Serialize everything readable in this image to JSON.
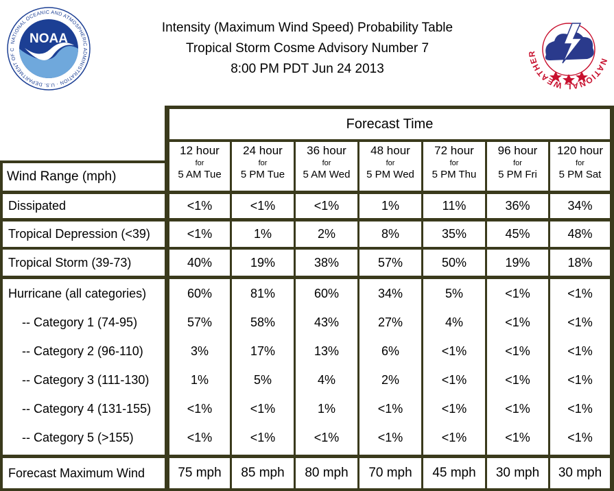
{
  "header": {
    "title_line1": "Intensity (Maximum Wind Speed) Probability Table",
    "title_line2": "Tropical Storm Cosme Advisory Number 7",
    "title_line3": "8:00 PM PDT Jun 24 2013",
    "left_logo": "noaa-logo",
    "left_logo_text": "NOAA",
    "left_logo_ring_text": "NATIONAL OCEANIC AND ATMOSPHERIC ADMINISTRATION · U.S. DEPARTMENT OF COMMERCE",
    "right_logo": "national-weather-service-logo",
    "right_logo_ring_text": "NATIONAL WEATHER SERVICE"
  },
  "table": {
    "forecast_time_label": "Forecast Time",
    "wind_range_label": "Wind Range (mph)",
    "columns": [
      {
        "hour": "12 hour",
        "for": "for",
        "when": "5 AM Tue"
      },
      {
        "hour": "24 hour",
        "for": "for",
        "when": "5 PM Tue"
      },
      {
        "hour": "36 hour",
        "for": "for",
        "when": "5 AM Wed"
      },
      {
        "hour": "48 hour",
        "for": "for",
        "when": "5 PM Wed"
      },
      {
        "hour": "72 hour",
        "for": "for",
        "when": "5 PM Thu"
      },
      {
        "hour": "96 hour",
        "for": "for",
        "when": "5 PM Fri"
      },
      {
        "hour": "120 hour",
        "for": "for",
        "when": "5 PM Sat"
      }
    ],
    "rows": [
      {
        "label": "Dissipated",
        "values": [
          "<1%",
          "<1%",
          "<1%",
          "1%",
          "11%",
          "36%",
          "34%"
        ]
      },
      {
        "label": "Tropical Depression (<39)",
        "values": [
          "<1%",
          "1%",
          "2%",
          "8%",
          "35%",
          "45%",
          "48%"
        ]
      },
      {
        "label": "Tropical Storm (39-73)",
        "values": [
          "40%",
          "19%",
          "38%",
          "57%",
          "50%",
          "19%",
          "18%"
        ]
      },
      {
        "label": "Hurricane (all categories)",
        "values": [
          "60%",
          "81%",
          "60%",
          "34%",
          "5%",
          "<1%",
          "<1%"
        ]
      },
      {
        "label": "-- Category 1 (74-95)",
        "values": [
          "57%",
          "58%",
          "43%",
          "27%",
          "4%",
          "<1%",
          "<1%"
        ]
      },
      {
        "label": "-- Category 2 (96-110)",
        "values": [
          "3%",
          "17%",
          "13%",
          "6%",
          "<1%",
          "<1%",
          "<1%"
        ]
      },
      {
        "label": "-- Category 3 (111-130)",
        "values": [
          "1%",
          "5%",
          "4%",
          "2%",
          "<1%",
          "<1%",
          "<1%"
        ]
      },
      {
        "label": "-- Category 4 (131-155)",
        "values": [
          "<1%",
          "<1%",
          "1%",
          "<1%",
          "<1%",
          "<1%",
          "<1%"
        ]
      },
      {
        "label": "-- Category 5 (>155)",
        "values": [
          "<1%",
          "<1%",
          "<1%",
          "<1%",
          "<1%",
          "<1%",
          "<1%"
        ]
      }
    ],
    "max_wind_label": "Forecast Maximum Wind",
    "max_wind_values": [
      "75 mph",
      "85 mph",
      "80 mph",
      "70 mph",
      "45 mph",
      "30 mph",
      "30 mph"
    ]
  },
  "colors": {
    "grid_line": "#3a3a1c",
    "noaa_blue": "#1c3f94",
    "nws_red": "#c8102e"
  }
}
